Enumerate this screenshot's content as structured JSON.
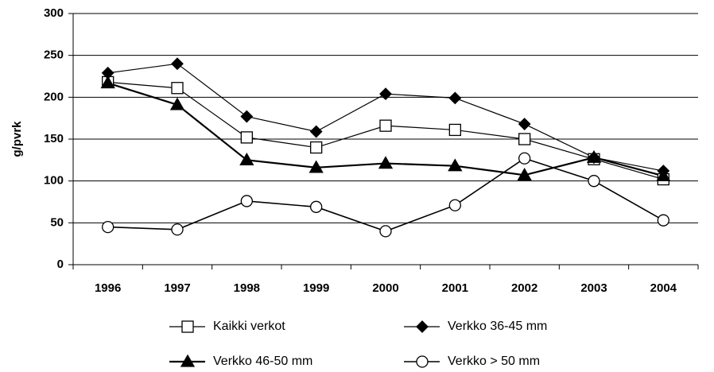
{
  "chart_data": {
    "type": "line",
    "ylabel": "g/pvrk",
    "categories": [
      "1996",
      "1997",
      "1998",
      "1999",
      "2000",
      "2001",
      "2002",
      "2003",
      "2004"
    ],
    "series": [
      {
        "name": "Kaikki verkot",
        "color": "#000000",
        "marker": "square",
        "values": [
          218,
          211,
          152,
          140,
          166,
          161,
          150,
          126,
          102
        ]
      },
      {
        "name": "Verkko 36-45 mm",
        "color": "#000000",
        "marker": "diamond",
        "values": [
          229,
          240,
          177,
          159,
          204,
          199,
          168,
          128,
          112
        ]
      },
      {
        "name": "Verkko 46-50 mm",
        "color": "#000000",
        "marker": "triangle",
        "values": [
          217,
          191,
          125,
          116,
          121,
          118,
          107,
          128,
          106
        ]
      },
      {
        "name": "Verkko > 50 mm",
        "color": "#000000",
        "marker": "circle",
        "values": [
          45,
          42,
          76,
          69,
          40,
          71,
          127,
          100,
          53
        ]
      }
    ],
    "ylim": [
      0,
      300
    ],
    "yticks": [
      0,
      50,
      100,
      150,
      200,
      250,
      300
    ],
    "grid": true
  }
}
